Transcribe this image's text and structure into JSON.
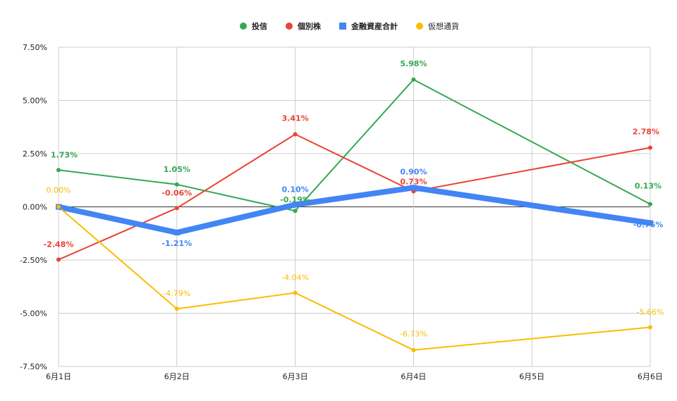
{
  "chart_data": {
    "type": "line",
    "categories": [
      "6月1日",
      "6月2日",
      "6月3日",
      "6月4日",
      "6月5日",
      "6月6日"
    ],
    "ylim": [
      -7.5,
      7.5
    ],
    "yticks": [
      7.5,
      5.0,
      2.5,
      0.0,
      -2.5,
      -5.0,
      -7.5
    ],
    "ytick_labels": [
      "7.50%",
      "5.00%",
      "2.50%",
      "0.00%",
      "-2.50%",
      "-5.00%",
      "-7.50%"
    ],
    "grid": true,
    "legend_position": "top-center",
    "series": [
      {
        "name": "投信",
        "color": "#34a853",
        "marker": "circle",
        "values": [
          1.73,
          1.05,
          -0.19,
          5.98,
          null,
          0.13
        ],
        "labels": [
          "1.73%",
          "1.05%",
          "-0.19%",
          "5.98%",
          "",
          "0.13%"
        ]
      },
      {
        "name": "個別株",
        "color": "#ea4335",
        "marker": "circle",
        "values": [
          -2.48,
          -0.06,
          3.41,
          0.73,
          null,
          2.78
        ],
        "labels": [
          "-2.48%",
          "-0.06%",
          "3.41%",
          "0.73%",
          "",
          "2.78%"
        ]
      },
      {
        "name": "金融資産合計",
        "color": "#4285f4",
        "marker": "square",
        "values": [
          0.0,
          -1.21,
          0.1,
          0.9,
          null,
          -0.76
        ],
        "labels": [
          "",
          "-1.21%",
          "0.10%",
          "0.90%",
          "",
          "-0.76%"
        ]
      },
      {
        "name": "仮想通貨",
        "color": "#fbbc04",
        "marker": "circle",
        "values": [
          0.0,
          -4.79,
          -4.04,
          -6.73,
          null,
          -5.66
        ],
        "labels": [
          "0.00%",
          "-4.79%",
          "-4.04%",
          "-6.73%",
          "",
          "-5.66%"
        ]
      }
    ]
  }
}
